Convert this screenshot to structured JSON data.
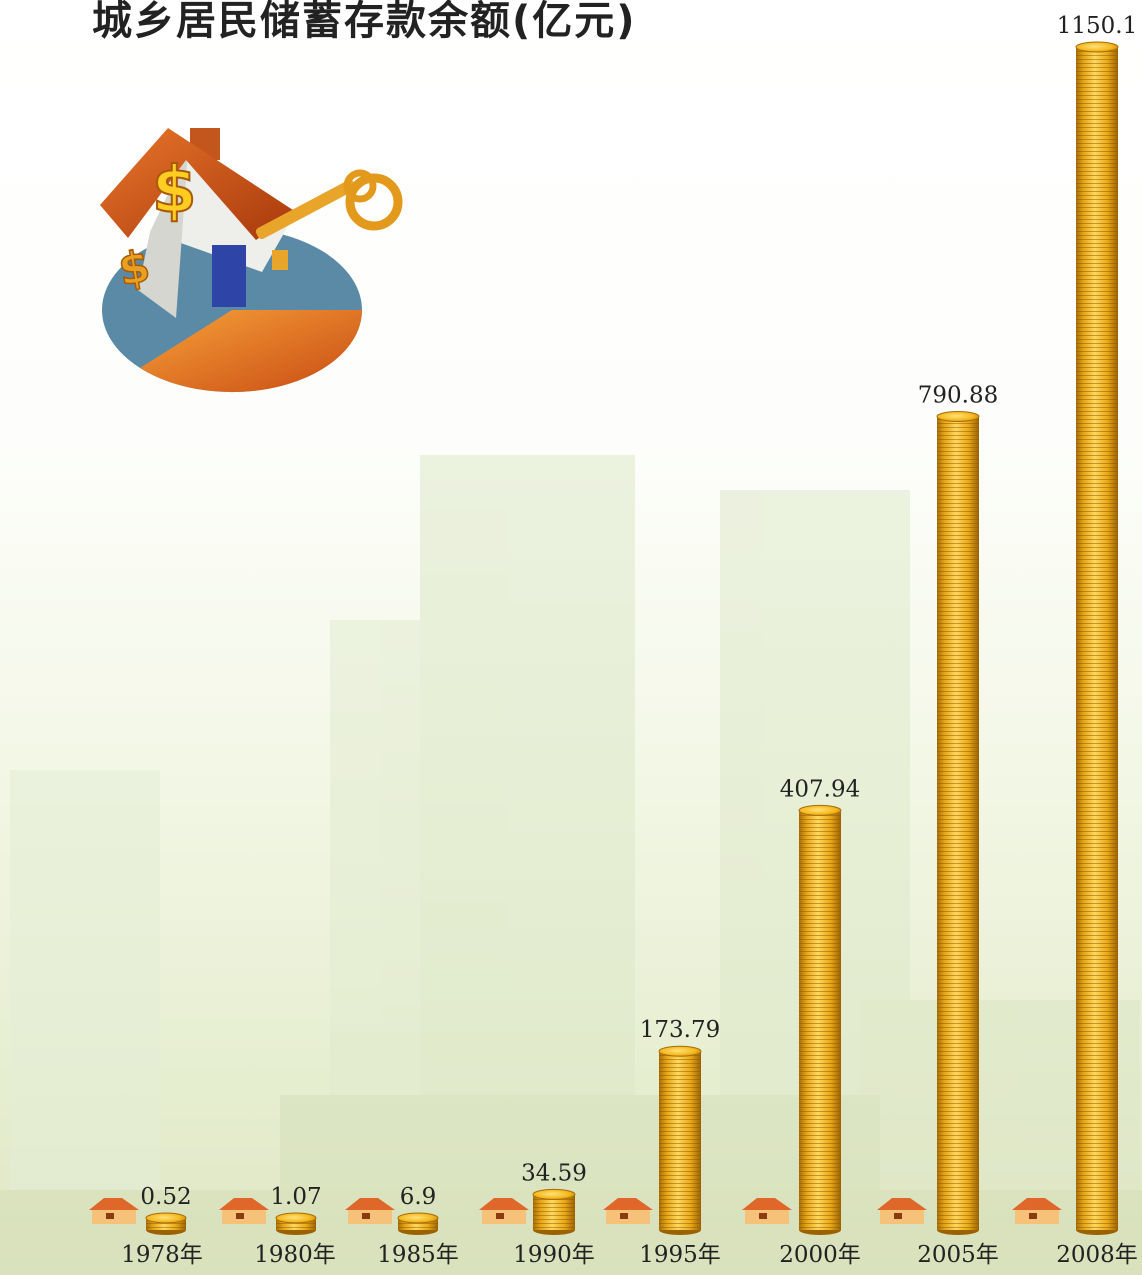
{
  "chart_data": {
    "type": "bar",
    "title": "城乡居民储蓄存款余额(亿元)",
    "categories": [
      "1978年",
      "1980年",
      "1985年",
      "1990年",
      "1995年",
      "2000年",
      "2005年",
      "2008年"
    ],
    "values": [
      0.52,
      1.07,
      6.9,
      34.59,
      173.79,
      407.94,
      790.88,
      1150.1
    ],
    "value_labels": [
      "0.52",
      "1.07",
      "6.9",
      "34.59",
      "173.79",
      "407.94",
      "790.88",
      "1150.1"
    ],
    "xlabel": "",
    "ylabel": "",
    "ylim": [
      0,
      1150.1
    ],
    "grid": false,
    "legend": "none",
    "mark_style": "stacked gold coins",
    "colors": {
      "coin": "#f2b21a",
      "coin_edge": "#b87a08",
      "coin_top": "#ffd75a"
    }
  }
}
